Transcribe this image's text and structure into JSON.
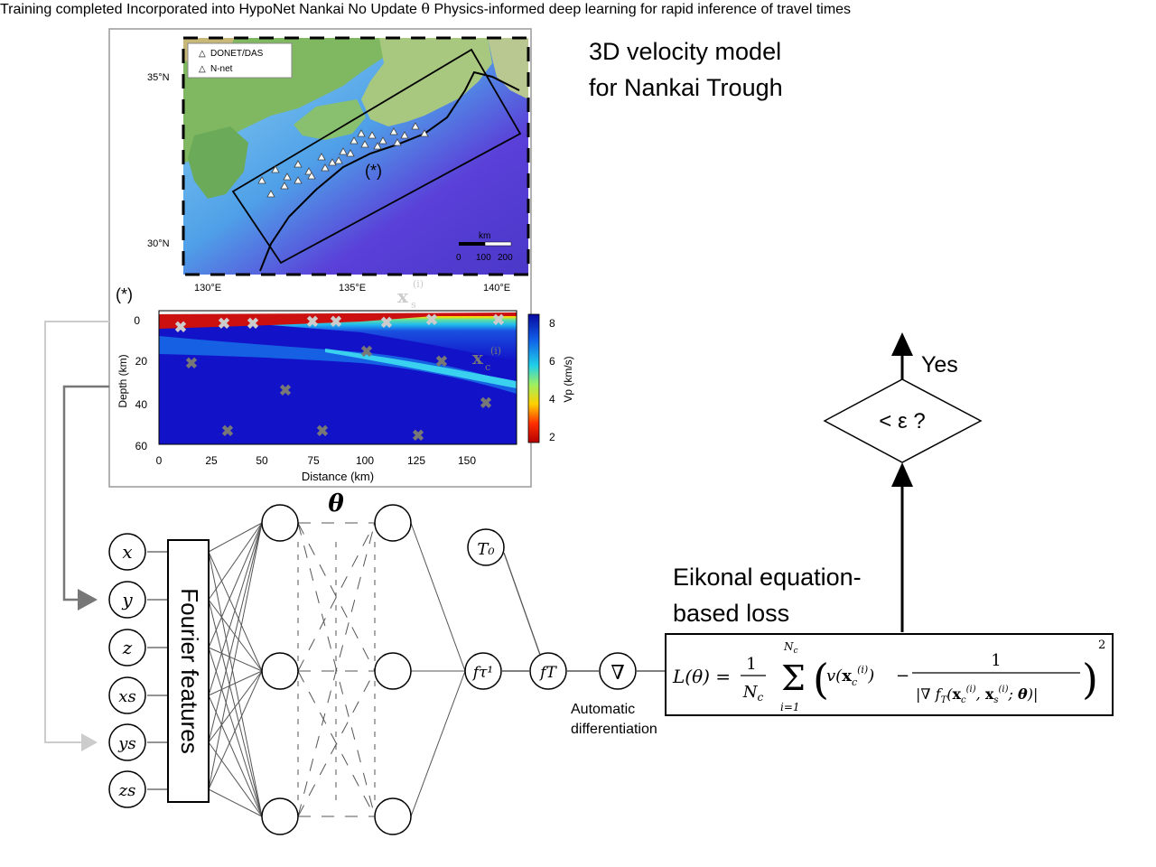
{
  "map": {
    "title_line1": "3D velocity model",
    "title_line2": "for Nankai Trough",
    "legend": [
      "DONET/DAS",
      "N-net"
    ],
    "lat_labels": [
      "35°N",
      "30°N"
    ],
    "lon_labels": [
      "130°E",
      "135°E",
      "140°E"
    ],
    "scale_unit": "km",
    "scale_ticks": [
      "0",
      "100",
      "200"
    ],
    "profile_marker": "(*)"
  },
  "section": {
    "marker": "(*)",
    "xlabel": "Distance (km)",
    "ylabel": "Depth (km)",
    "x_ticks": [
      "0",
      "25",
      "50",
      "75",
      "100",
      "125",
      "150"
    ],
    "y_ticks": [
      "0",
      "20",
      "40",
      "60"
    ],
    "colorbar_label": "Vp (km/s)",
    "colorbar_ticks": [
      "8",
      "6",
      "4",
      "2"
    ],
    "xs_label": "x",
    "xs_sub": "s",
    "xc_label": "x",
    "xc_sub": "c",
    "sup": "(i)",
    "colors": {
      "shallow": "#cc1010",
      "mid": "#ffd400",
      "cyan": "#28c8f0",
      "deep": "#1a2ad8",
      "deepest": "#1212c8"
    }
  },
  "network": {
    "theta": "θ",
    "inputs": [
      "x",
      "y",
      "z",
      "xs",
      "ys",
      "zs"
    ],
    "fourier": "Fourier features",
    "t0": "T₀",
    "ft1": "fτ¹",
    "ft": "fT",
    "grad": "∇",
    "autodiff_line1": "Automatic",
    "autodiff_line2": "differentiation"
  },
  "loss": {
    "label_line1": "Eikonal equation-",
    "label_line2": "based loss",
    "formula_lhs": "L(θ) =",
    "formula_frac": "1 / N",
    "formula_sum": "Σ",
    "formula_body": "( v(x_c^(i)) − 1 / |∇ f_T(x_c^(i), x_s^(i); θ)| )²"
  },
  "flow": {
    "decision": "< ε ?",
    "yes": "Yes",
    "no": "No",
    "update_line1": "Update",
    "update_line2": "θ",
    "training": "Training completed",
    "incorporated": "Incorporated into HypoNet Nankai"
  },
  "caption": {
    "line1": "Physics-informed deep learning",
    "line2": "for rapid inference of travel times"
  }
}
